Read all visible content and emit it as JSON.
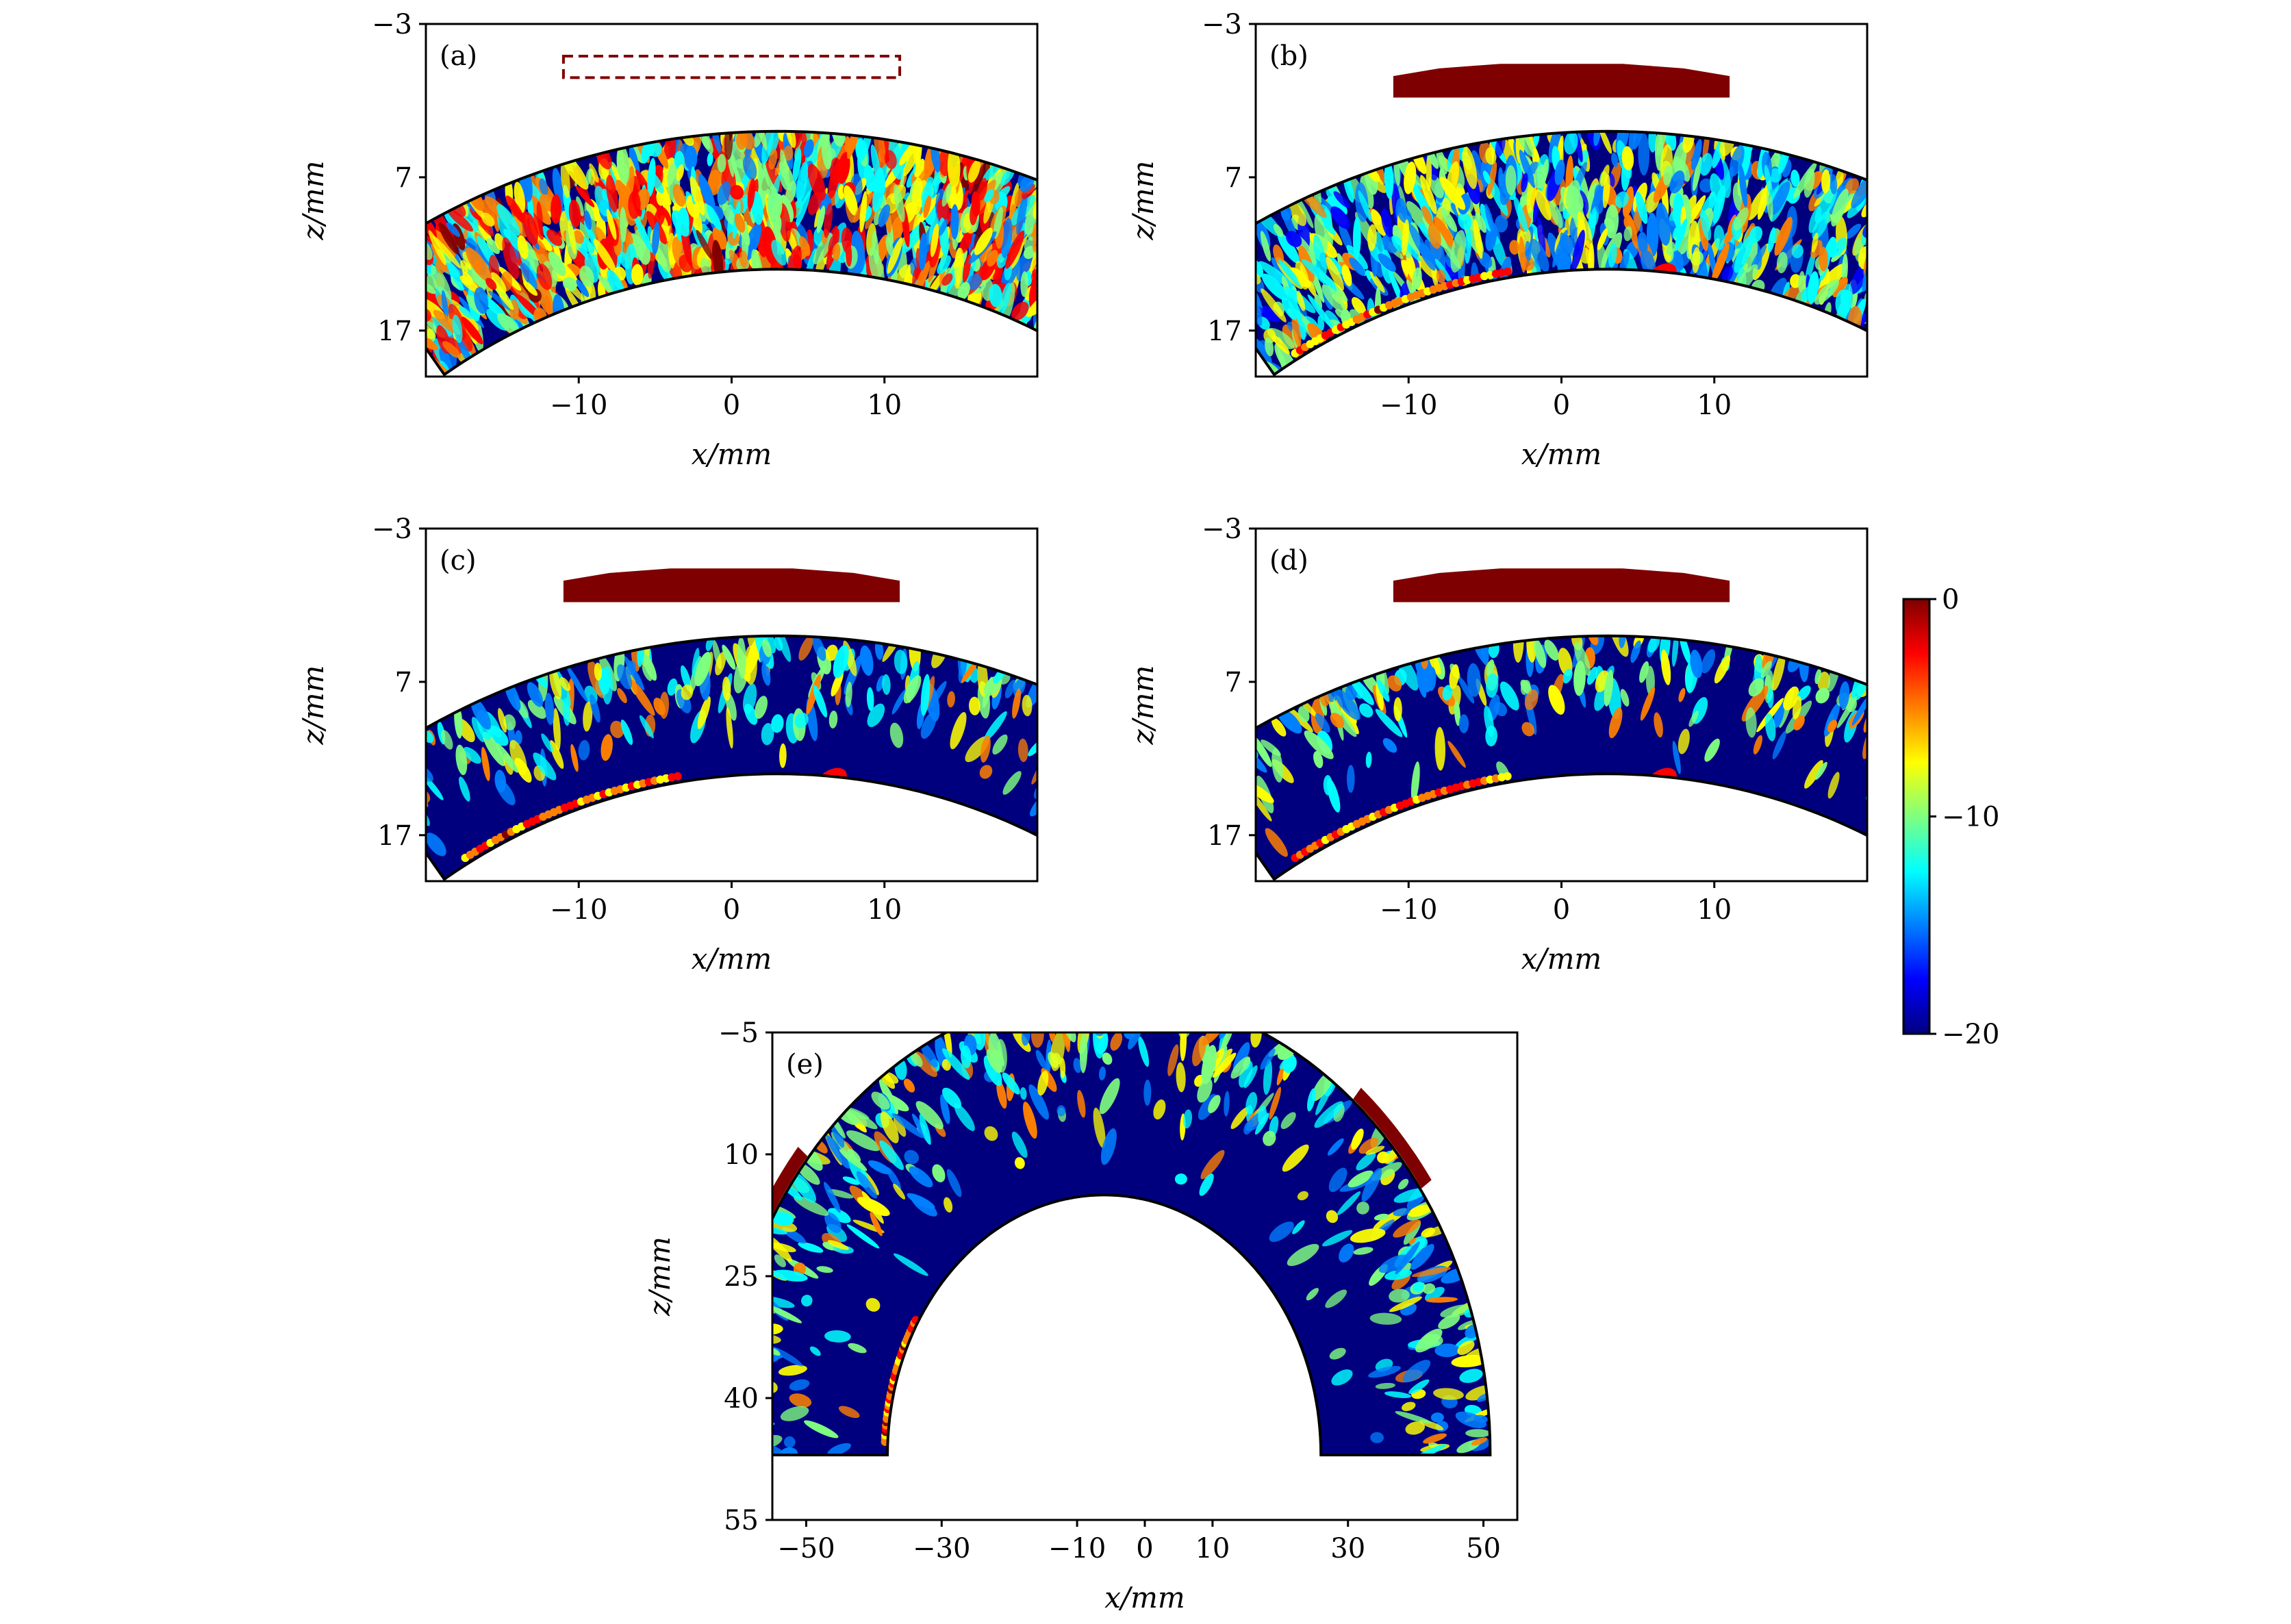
{
  "colors": {
    "background_field": "#00007f",
    "aperture": "#7f0000",
    "jet": [
      "#00007f",
      "#0000ff",
      "#007fff",
      "#00ffff",
      "#7fff7f",
      "#ffff00",
      "#ff7f00",
      "#ff0000",
      "#7f0000"
    ]
  },
  "colorbar": {
    "min": -20,
    "max": 0,
    "ticks": [
      {
        "value": 0,
        "label": "0"
      },
      {
        "value": -10,
        "label": "−10"
      },
      {
        "value": -20,
        "label": "−20"
      }
    ]
  },
  "chart_data": [
    {
      "type": "heatmap",
      "panel": "(a)",
      "title": "",
      "xlabel": "x/mm",
      "ylabel": "z/mm",
      "xlim": [
        -20,
        20
      ],
      "ylim": [
        20,
        -3
      ],
      "xticks": [
        {
          "v": -10,
          "t": "−10"
        },
        {
          "v": 0,
          "t": "0"
        },
        {
          "v": 10,
          "t": "10"
        }
      ],
      "yticks": [
        {
          "v": -3,
          "t": "−3"
        },
        {
          "v": 7,
          "t": "7"
        },
        {
          "v": 17,
          "t": "17"
        }
      ],
      "style": "dense",
      "aperture": "dashed",
      "notch": [
        3,
        15.5,
        8,
        13.5
      ]
    },
    {
      "type": "heatmap",
      "panel": "(b)",
      "title": "",
      "xlabel": "x/mm",
      "ylabel": "z/mm",
      "xlim": [
        -20,
        20
      ],
      "ylim": [
        20,
        -3
      ],
      "xticks": [
        {
          "v": -10,
          "t": "−10"
        },
        {
          "v": 0,
          "t": "0"
        },
        {
          "v": 10,
          "t": "10"
        }
      ],
      "yticks": [
        {
          "v": -3,
          "t": "−3"
        },
        {
          "v": 7,
          "t": "7"
        },
        {
          "v": 17,
          "t": "17"
        }
      ],
      "style": "medium",
      "aperture": "solid",
      "notch": [
        3,
        15.5,
        6.5,
        13.5
      ]
    },
    {
      "type": "heatmap",
      "panel": "(c)",
      "title": "",
      "xlabel": "x/mm",
      "ylabel": "z/mm",
      "xlim": [
        -20,
        20
      ],
      "ylim": [
        20,
        -3
      ],
      "xticks": [
        {
          "v": -10,
          "t": "−10"
        },
        {
          "v": 0,
          "t": "0"
        },
        {
          "v": 10,
          "t": "10"
        }
      ],
      "yticks": [
        {
          "v": -3,
          "t": "−3"
        },
        {
          "v": 7,
          "t": "7"
        },
        {
          "v": 17,
          "t": "17"
        }
      ],
      "style": "sparse",
      "aperture": "solid",
      "notch": [
        3,
        15.5,
        6.5,
        13.5
      ]
    },
    {
      "type": "heatmap",
      "panel": "(d)",
      "title": "",
      "xlabel": "x/mm",
      "ylabel": "z/mm",
      "xlim": [
        -20,
        20
      ],
      "ylim": [
        20,
        -3
      ],
      "xticks": [
        {
          "v": -10,
          "t": "−10"
        },
        {
          "v": 0,
          "t": "0"
        },
        {
          "v": 10,
          "t": "10"
        }
      ],
      "yticks": [
        {
          "v": -3,
          "t": "−3"
        },
        {
          "v": 7,
          "t": "7"
        },
        {
          "v": 17,
          "t": "17"
        }
      ],
      "style": "sparse",
      "aperture": "solid",
      "notch": [
        3,
        15.5,
        6.5,
        13.5
      ]
    },
    {
      "type": "heatmap",
      "panel": "(e)",
      "title": "",
      "xlabel": "x/mm",
      "ylabel": "z/mm",
      "xlim": [
        -55,
        55
      ],
      "ylim": [
        55,
        -5
      ],
      "xticks": [
        {
          "v": -50,
          "t": "−50"
        },
        {
          "v": -30,
          "t": "−30"
        },
        {
          "v": -10,
          "t": "−10"
        },
        {
          "v": 0,
          "t": "0"
        },
        {
          "v": 10,
          "t": "10"
        },
        {
          "v": 30,
          "t": "30"
        },
        {
          "v": 50,
          "t": "50"
        }
      ],
      "yticks": [
        {
          "v": -5,
          "t": "−5"
        },
        {
          "v": 10,
          "t": "10"
        },
        {
          "v": 25,
          "t": "25"
        },
        {
          "v": 40,
          "t": "40"
        },
        {
          "v": 55,
          "t": "55"
        }
      ],
      "style": "sparse",
      "aperture": "arcs"
    }
  ]
}
